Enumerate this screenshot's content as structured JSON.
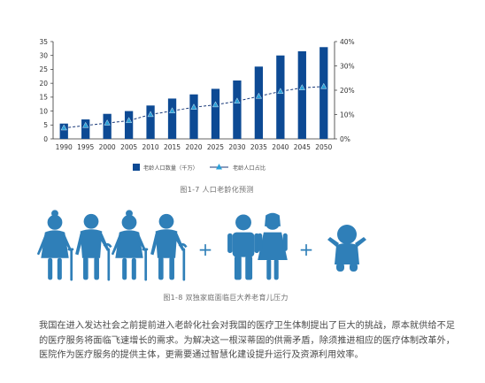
{
  "chart_data": {
    "type": "bar+line",
    "categories": [
      "1990",
      "1995",
      "2000",
      "2005",
      "2010",
      "2015",
      "2020",
      "2025",
      "2030",
      "2035",
      "2040",
      "2045",
      "2050"
    ],
    "series": [
      {
        "name": "老龄人口数量（千万）",
        "type": "bar",
        "axis": "left",
        "values": [
          5.5,
          7,
          9,
          10,
          12,
          14.5,
          16,
          18,
          21,
          26,
          30,
          31.5,
          33
        ],
        "color": "#0d4a94"
      },
      {
        "name": "老龄人口占比",
        "type": "line",
        "axis": "right",
        "values": [
          4.5,
          5.5,
          6.5,
          7.5,
          10,
          11.5,
          13,
          14,
          15.5,
          17.5,
          19.5,
          21,
          21.5
        ],
        "color": "#1a3a7a",
        "marker_color": "#2aa0d8"
      }
    ],
    "y_left": {
      "min": 0,
      "max": 35,
      "ticks": [
        "0",
        "5",
        "10",
        "15",
        "20",
        "25",
        "30",
        "35"
      ]
    },
    "y_right": {
      "min": 0,
      "max": 40,
      "ticks": [
        "0%",
        "10%",
        "20%",
        "30%",
        "40%"
      ]
    },
    "legend_placement": "bottom-center"
  },
  "figure1_caption": "图1-7 人口老龄化预测",
  "figure2": {
    "caption": "图1-8 双独家庭面临巨大养老育儿压力",
    "icons": [
      "elderly-woman-icon",
      "elderly-man-icon",
      "elderly-woman-icon",
      "elderly-man-icon",
      "plus-icon",
      "man-icon",
      "woman-icon",
      "plus-icon",
      "baby-icon"
    ],
    "plus_symbol": "+",
    "color": "#2f7fb8"
  },
  "body_text": "我国在进入发达社会之前提前进入老龄化社会对我国的医疗卫生体制提出了巨大的挑战，原本就供给不足的医疗服务将面临飞速增长的需求。为解决这一根深蒂固的供需矛盾，除须推进相应的医疗体制改革外，医院作为医疗服务的提供主体，更需要通过智慧化建设提升运行及资源利用效率。"
}
